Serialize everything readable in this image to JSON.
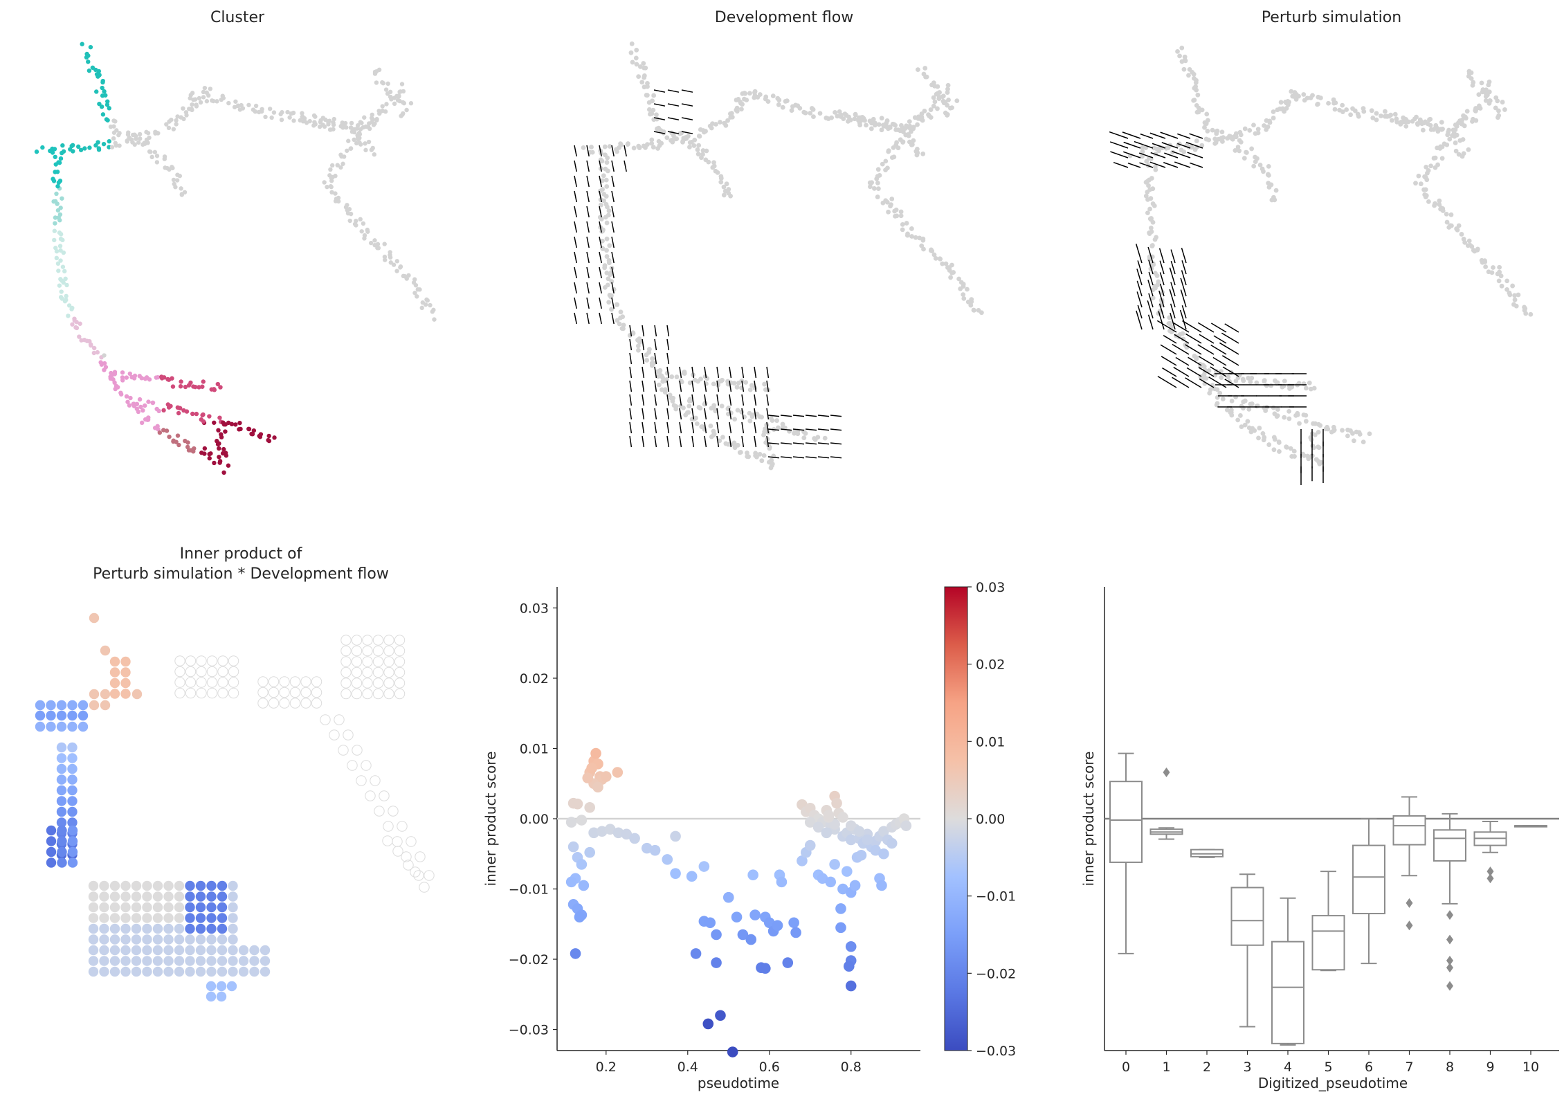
{
  "panels": {
    "cluster": {
      "title": "Cluster"
    },
    "flow": {
      "title": "Development flow"
    },
    "perturb": {
      "title": "Perturb simulation"
    },
    "inner": {
      "title_line1": "Inner product of",
      "title_line2": "Perturb simulation * Development flow"
    }
  },
  "colors": {
    "background_cells": "#d3d3d3",
    "arrows": "#000000",
    "box": "#8c8c8c",
    "zero_line": "#d3d3d3"
  },
  "chart_data": [
    {
      "type": "scatter",
      "name": "pseudotime-vs-score",
      "xlabel": "pseudotime",
      "ylabel": "inner product score",
      "xlim": [
        0.08,
        0.97
      ],
      "ylim": [
        -0.033,
        0.033
      ],
      "xticks": [
        "0.2",
        "0.4",
        "0.6",
        "0.8"
      ],
      "yticks": [
        "0.03",
        "0.02",
        "0.01",
        "0.00",
        "−0.01",
        "−0.02",
        "−0.03"
      ],
      "reference_line_y": 0,
      "colormap": "coolwarm",
      "colorbar_range": [
        -0.03,
        0.03
      ],
      "colorbar_ticks": [
        "0.03",
        "0.02",
        "0.01",
        "0.00",
        "−0.01",
        "−0.02",
        "−0.03"
      ],
      "points": [
        [
          0.16,
          0.0066
        ],
        [
          0.17,
          0.0082
        ],
        [
          0.175,
          0.0093
        ],
        [
          0.18,
          0.0078
        ],
        [
          0.165,
          0.0072
        ],
        [
          0.185,
          0.006
        ],
        [
          0.19,
          0.0056
        ],
        [
          0.17,
          0.005
        ],
        [
          0.155,
          0.0058
        ],
        [
          0.228,
          0.0066
        ],
        [
          0.2,
          0.006
        ],
        [
          0.18,
          0.0045
        ],
        [
          0.12,
          0.0022
        ],
        [
          0.13,
          0.0021
        ],
        [
          0.16,
          0.0016
        ],
        [
          0.115,
          -0.0005
        ],
        [
          0.14,
          -0.0002
        ],
        [
          0.17,
          -0.002
        ],
        [
          0.19,
          -0.0018
        ],
        [
          0.21,
          -0.0015
        ],
        [
          0.23,
          -0.002
        ],
        [
          0.25,
          -0.0022
        ],
        [
          0.27,
          -0.0028
        ],
        [
          0.3,
          -0.0042
        ],
        [
          0.32,
          -0.0045
        ],
        [
          0.35,
          -0.0058
        ],
        [
          0.37,
          -0.0078
        ],
        [
          0.41,
          -0.0082
        ],
        [
          0.44,
          -0.0068
        ],
        [
          0.12,
          -0.004
        ],
        [
          0.13,
          -0.0055
        ],
        [
          0.14,
          -0.0065
        ],
        [
          0.16,
          -0.0048
        ],
        [
          0.125,
          -0.0085
        ],
        [
          0.115,
          -0.009
        ],
        [
          0.145,
          -0.0095
        ],
        [
          0.12,
          -0.0122
        ],
        [
          0.13,
          -0.0128
        ],
        [
          0.14,
          -0.0137
        ],
        [
          0.135,
          -0.014
        ],
        [
          0.125,
          -0.0192
        ],
        [
          0.37,
          -0.0025
        ],
        [
          0.44,
          -0.0146
        ],
        [
          0.455,
          -0.0148
        ],
        [
          0.47,
          -0.0165
        ],
        [
          0.5,
          -0.0112
        ],
        [
          0.52,
          -0.014
        ],
        [
          0.535,
          -0.0165
        ],
        [
          0.45,
          -0.0292
        ],
        [
          0.48,
          -0.028
        ],
        [
          0.51,
          -0.0332
        ],
        [
          0.42,
          -0.0192
        ],
        [
          0.47,
          -0.0205
        ],
        [
          0.555,
          -0.0172
        ],
        [
          0.56,
          -0.008
        ],
        [
          0.565,
          -0.0137
        ],
        [
          0.58,
          -0.0212
        ],
        [
          0.59,
          -0.0213
        ],
        [
          0.59,
          -0.014
        ],
        [
          0.6,
          -0.0148
        ],
        [
          0.61,
          -0.016
        ],
        [
          0.62,
          -0.0152
        ],
        [
          0.625,
          -0.008
        ],
        [
          0.63,
          -0.009
        ],
        [
          0.645,
          -0.0205
        ],
        [
          0.66,
          -0.0148
        ],
        [
          0.665,
          -0.0162
        ],
        [
          0.68,
          -0.006
        ],
        [
          0.69,
          -0.0048
        ],
        [
          0.7,
          -0.0038
        ],
        [
          0.72,
          -0.008
        ],
        [
          0.73,
          -0.0085
        ],
        [
          0.75,
          -0.009
        ],
        [
          0.76,
          -0.0065
        ],
        [
          0.775,
          -0.0128
        ],
        [
          0.78,
          -0.01
        ],
        [
          0.79,
          -0.0075
        ],
        [
          0.8,
          -0.0105
        ],
        [
          0.81,
          -0.0095
        ],
        [
          0.815,
          -0.0055
        ],
        [
          0.8,
          -0.0182
        ],
        [
          0.8,
          -0.0202
        ],
        [
          0.795,
          -0.021
        ],
        [
          0.8,
          -0.0238
        ],
        [
          0.775,
          -0.0155
        ],
        [
          0.68,
          0.002
        ],
        [
          0.69,
          0.001
        ],
        [
          0.7,
          0.0015
        ],
        [
          0.71,
          0.0005
        ],
        [
          0.72,
          0.0
        ],
        [
          0.73,
          -0.0005
        ],
        [
          0.74,
          0.0012
        ],
        [
          0.75,
          -0.001
        ],
        [
          0.76,
          -0.0015
        ],
        [
          0.77,
          0.0008
        ],
        [
          0.78,
          -0.0025
        ],
        [
          0.79,
          -0.002
        ],
        [
          0.8,
          -0.003
        ],
        [
          0.81,
          -0.0015
        ],
        [
          0.82,
          -0.0028
        ],
        [
          0.83,
          -0.0035
        ],
        [
          0.84,
          -0.0022
        ],
        [
          0.85,
          -0.004
        ],
        [
          0.86,
          -0.0032
        ],
        [
          0.87,
          -0.0025
        ],
        [
          0.88,
          -0.0018
        ],
        [
          0.89,
          -0.003
        ],
        [
          0.9,
          -0.0012
        ],
        [
          0.91,
          -0.0008
        ],
        [
          0.92,
          -0.0005
        ],
        [
          0.93,
          0.0
        ],
        [
          0.935,
          -0.001
        ],
        [
          0.7,
          -0.0005
        ],
        [
          0.72,
          -0.0012
        ],
        [
          0.74,
          -0.002
        ],
        [
          0.76,
          -0.0008
        ],
        [
          0.78,
          0.0002
        ],
        [
          0.8,
          -0.001
        ],
        [
          0.82,
          -0.0018
        ],
        [
          0.84,
          -0.003
        ],
        [
          0.86,
          -0.0045
        ],
        [
          0.88,
          -0.005
        ],
        [
          0.9,
          -0.0035
        ],
        [
          0.87,
          -0.0085
        ],
        [
          0.875,
          -0.0095
        ],
        [
          0.745,
          0.0002
        ],
        [
          0.76,
          0.0032
        ],
        [
          0.765,
          0.0022
        ],
        [
          0.745,
          0.0005
        ],
        [
          0.825,
          -0.0052
        ]
      ]
    },
    {
      "type": "box",
      "name": "digitized-pseudotime-box",
      "xlabel": "Digitized_pseudotime",
      "ylabel": "inner product score",
      "ylim": [
        -0.033,
        0.033
      ],
      "reference_line_y": 0,
      "categories": [
        "0",
        "1",
        "2",
        "3",
        "4",
        "5",
        "6",
        "7",
        "8",
        "9",
        "10"
      ],
      "boxes": [
        {
          "wlo": -0.0192,
          "q1": -0.0062,
          "med": -0.0002,
          "q3": 0.0053,
          "whi": 0.0093,
          "fliers": []
        },
        {
          "wlo": -0.0029,
          "q1": -0.0022,
          "med": -0.0019,
          "q3": -0.0015,
          "whi": -0.0013,
          "fliers": [
            0.0066
          ]
        },
        {
          "wlo": -0.0055,
          "q1": -0.0054,
          "med": -0.005,
          "q3": -0.0044,
          "whi": -0.0044,
          "fliers": []
        },
        {
          "wlo": -0.0296,
          "q1": -0.018,
          "med": -0.0145,
          "q3": -0.0098,
          "whi": -0.0079,
          "fliers": []
        },
        {
          "wlo": -0.0322,
          "q1": -0.032,
          "med": -0.024,
          "q3": -0.0175,
          "whi": -0.0113,
          "fliers": []
        },
        {
          "wlo": -0.0216,
          "q1": -0.0215,
          "med": -0.016,
          "q3": -0.0138,
          "whi": -0.0075,
          "fliers": []
        },
        {
          "wlo": -0.0206,
          "q1": -0.0135,
          "med": -0.0083,
          "q3": -0.0038,
          "whi": 0.0,
          "fliers": []
        },
        {
          "wlo": -0.0081,
          "q1": -0.0037,
          "med": -0.001,
          "q3": 0.0004,
          "whi": 0.0031,
          "fliers": [
            -0.012,
            -0.0152
          ]
        },
        {
          "wlo": -0.0121,
          "q1": -0.006,
          "med": -0.0028,
          "q3": -0.0016,
          "whi": 0.0007,
          "fliers": [
            -0.0137,
            -0.0172,
            -0.0202,
            -0.0212,
            -0.0238
          ]
        },
        {
          "wlo": -0.0048,
          "q1": -0.0038,
          "med": -0.0028,
          "q3": -0.0019,
          "whi": -0.0004,
          "fliers": [
            -0.0075,
            -0.0085
          ]
        },
        {
          "wlo": -0.001,
          "q1": -0.001,
          "med": -0.001,
          "q3": -0.001,
          "whi": -0.001,
          "fliers": []
        }
      ]
    }
  ]
}
